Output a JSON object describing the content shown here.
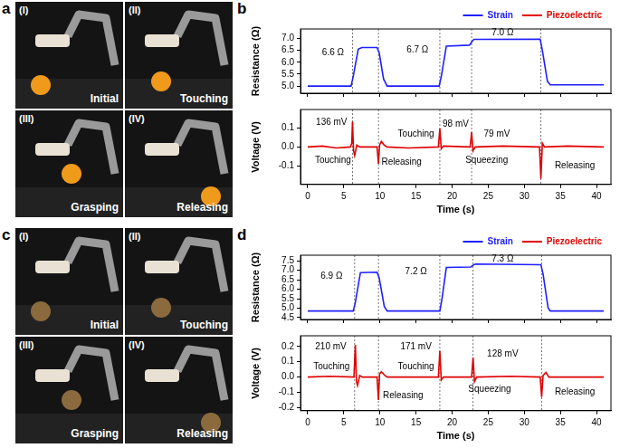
{
  "figure": {
    "photo_panels": [
      {
        "label": "a",
        "photos": [
          {
            "number": "(I)",
            "caption": "Initial"
          },
          {
            "number": "(II)",
            "caption": "Touching"
          },
          {
            "number": "(III)",
            "caption": "Grasping"
          },
          {
            "number": "(IV)",
            "caption": "Releasing"
          }
        ]
      },
      {
        "label": "c",
        "photos": [
          {
            "number": "(I)",
            "caption": "Initial"
          },
          {
            "number": "(II)",
            "caption": "Touching"
          },
          {
            "number": "(III)",
            "caption": "Grasping"
          },
          {
            "number": "(IV)",
            "caption": "Releasing"
          }
        ]
      }
    ]
  },
  "chart_data": [
    {
      "label": "b",
      "type": "line",
      "x_label": "Time (s)",
      "xlim": [
        -1,
        42
      ],
      "xticks": [
        0,
        5,
        10,
        15,
        20,
        25,
        30,
        35,
        40
      ],
      "legend": "top-right",
      "grid": false,
      "vlines": [
        6.2,
        9.8,
        18.3,
        22.7,
        32.3
      ],
      "subplots": [
        {
          "y_label": "Resistance (Ω)",
          "ylim": [
            4.7,
            7.4
          ],
          "yticks": [
            {
              "value": 5,
              "label": "5.0"
            },
            {
              "value": 5.5,
              "label": "5.5"
            },
            {
              "value": 6,
              "label": "6.0"
            },
            {
              "value": 6.5,
              "label": "6.5"
            },
            {
              "value": 7,
              "label": "7.0"
            }
          ],
          "series": [
            {
              "name": "Strain",
              "color": "#2020ff",
              "x": [
                0,
                6.0,
                6.3,
                7.0,
                7.5,
                9.6,
                9.9,
                10.5,
                11,
                18.2,
                18.5,
                19.2,
                22.4,
                22.7,
                23.0,
                32.2,
                32.5,
                33.2,
                33.6,
                41
              ],
              "values": [
                5.0,
                5.0,
                5.4,
                6.55,
                6.62,
                6.62,
                6.4,
                5.3,
                5.0,
                5.0,
                5.4,
                6.68,
                6.72,
                6.85,
                6.96,
                6.97,
                6.5,
                5.2,
                5.05,
                5.05
              ]
            }
          ],
          "annotations": [
            {
              "text": "6.6 Ω",
              "x": 3.5,
              "y": 6.4
            },
            {
              "text": "6.7 Ω",
              "x": 15.2,
              "y": 6.5
            },
            {
              "text": "7.0 Ω",
              "x": 27,
              "y": 7.22
            }
          ]
        },
        {
          "y_label": "Voltage (V)",
          "ylim": [
            -0.2,
            0.2
          ],
          "yticks": [
            -0.1,
            {
              "value": 0,
              "label": "0.0"
            },
            0.1
          ],
          "series": [
            {
              "name": "Piezoelectric",
              "color": "#e00000",
              "x": [
                0,
                2,
                4,
                5.9,
                6.1,
                6.2,
                6.35,
                6.5,
                6.8,
                7.2,
                9.6,
                9.8,
                9.95,
                10.2,
                10.6,
                11,
                14,
                18.1,
                18.3,
                18.5,
                18.8,
                22.5,
                22.7,
                22.9,
                23.2,
                27,
                32.1,
                32.3,
                32.5,
                32.8,
                36,
                41
              ],
              "values": [
                0,
                0.005,
                -0.005,
                0,
                0.02,
                0.136,
                -0.02,
                -0.045,
                0.01,
                0,
                0,
                -0.09,
                0.01,
                0.03,
                0.01,
                0,
                -0.005,
                0,
                0.098,
                -0.01,
                0.005,
                0,
                0.079,
                -0.02,
                0,
                0.005,
                0,
                -0.17,
                0.02,
                0,
                0.005,
                0
              ]
            }
          ],
          "annotations": [
            {
              "text": "136 mV",
              "x": 3.3,
              "y": 0.13
            },
            {
              "text": "Touching",
              "x": 3.5,
              "y": -0.07
            },
            {
              "text": "Releasing",
              "x": 13,
              "y": -0.08
            },
            {
              "text": "Touching",
              "x": 15,
              "y": 0.07
            },
            {
              "text": "98 mV",
              "x": 20.5,
              "y": 0.12
            },
            {
              "text": "Squeezing",
              "x": 24.8,
              "y": -0.07
            },
            {
              "text": "79 mV",
              "x": 26.2,
              "y": 0.07
            },
            {
              "text": "Releasing",
              "x": 37,
              "y": -0.1
            }
          ]
        }
      ]
    },
    {
      "label": "d",
      "type": "line",
      "x_label": "Time (s)",
      "xlim": [
        -1,
        42
      ],
      "xticks": [
        0,
        5,
        10,
        15,
        20,
        25,
        30,
        35,
        40
      ],
      "legend": "top-right",
      "grid": false,
      "vlines": [
        6.5,
        9.8,
        18.3,
        22.9,
        32.4
      ],
      "subplots": [
        {
          "y_label": "Resistance (Ω)",
          "ylim": [
            4.4,
            7.8
          ],
          "yticks": [
            {
              "value": 4.5,
              "label": "4.5"
            },
            {
              "value": 5,
              "label": "5.0"
            },
            {
              "value": 5.5,
              "label": "5.5"
            },
            {
              "value": 6,
              "label": "6.0"
            },
            {
              "value": 6.5,
              "label": "6.5"
            },
            {
              "value": 7,
              "label": "7.0"
            },
            {
              "value": 7.5,
              "label": "7.5"
            }
          ],
          "series": [
            {
              "name": "Strain",
              "color": "#2020ff",
              "x": [
                0,
                6.3,
                6.6,
                7.3,
                9.6,
                9.9,
                10.6,
                11,
                18.3,
                18.6,
                19.2,
                22.6,
                23.0,
                23.3,
                32.3,
                32.6,
                33.3,
                33.6,
                41
              ],
              "values": [
                4.85,
                4.85,
                5.3,
                6.88,
                6.9,
                6.6,
                5.1,
                4.85,
                4.85,
                5.5,
                7.15,
                7.18,
                7.3,
                7.33,
                7.3,
                6.8,
                5.0,
                4.85,
                4.85
              ]
            }
          ],
          "annotations": [
            {
              "text": "6.9 Ω",
              "x": 3.3,
              "y": 6.7
            },
            {
              "text": "7.2 Ω",
              "x": 15,
              "y": 6.95
            },
            {
              "text": "7.3 Ω",
              "x": 27,
              "y": 7.58
            }
          ]
        },
        {
          "y_label": "Voltage (V)",
          "ylim": [
            -0.22,
            0.27
          ],
          "yticks": [
            -0.2,
            -0.1,
            {
              "value": 0,
              "label": "0.0"
            },
            0.1,
            0.2
          ],
          "series": [
            {
              "name": "Piezoelectric",
              "color": "#e00000",
              "x": [
                0,
                3,
                6.4,
                6.6,
                6.75,
                6.9,
                7.2,
                7.6,
                9.6,
                9.8,
                9.95,
                10.2,
                10.7,
                11,
                18.1,
                18.3,
                18.5,
                18.8,
                22.7,
                22.9,
                23.1,
                23.4,
                28,
                32.2,
                32.4,
                32.6,
                33,
                33.4,
                41
              ],
              "values": [
                0,
                0.005,
                0,
                0.21,
                -0.03,
                -0.055,
                0.01,
                0,
                0,
                -0.15,
                0.02,
                0.035,
                0.01,
                0,
                0,
                0.171,
                -0.02,
                0,
                0,
                0.128,
                -0.03,
                0,
                0.005,
                0,
                -0.13,
                0.01,
                0.03,
                0,
                0
              ]
            }
          ],
          "annotations": [
            {
              "text": "210 mV",
              "x": 3.2,
              "y": 0.2
            },
            {
              "text": "Touching",
              "x": 3.3,
              "y": 0.07
            },
            {
              "text": "Releasing",
              "x": 13.2,
              "y": -0.12
            },
            {
              "text": "171 mV",
              "x": 15,
              "y": 0.2
            },
            {
              "text": "Touching",
              "x": 15,
              "y": 0.07
            },
            {
              "text": "128 mV",
              "x": 27,
              "y": 0.15
            },
            {
              "text": "Squeezing",
              "x": 25.2,
              "y": -0.08
            },
            {
              "text": "Releasing",
              "x": 37,
              "y": -0.1
            }
          ]
        }
      ]
    }
  ]
}
